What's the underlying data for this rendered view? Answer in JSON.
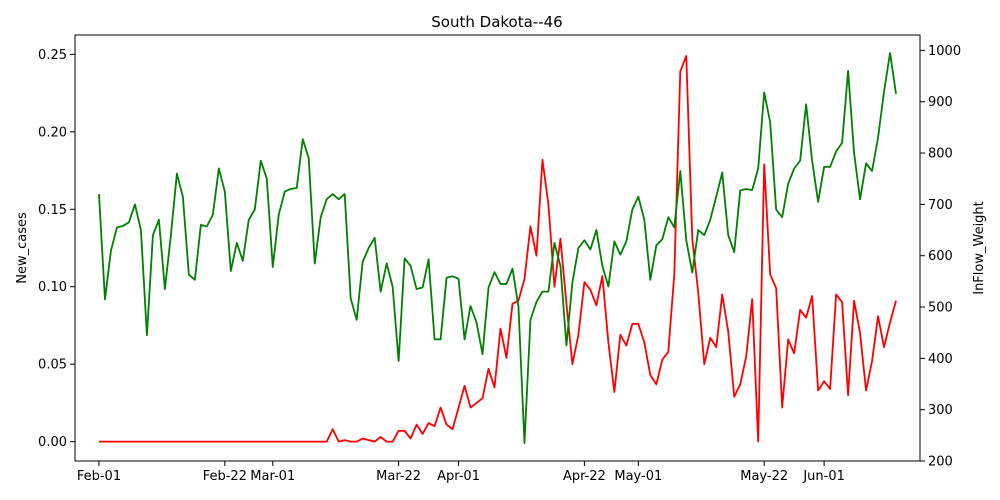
{
  "chart_data": {
    "type": "line",
    "title": "South Dakota--46",
    "ylabel_left": "New_cases",
    "ylabel_right": "InFlow_Weight",
    "x_ticks": [
      "Feb-01",
      "Feb-22",
      "Mar-01",
      "Mar-22",
      "Apr-01",
      "Apr-22",
      "May-01",
      "May-22",
      "Jun-01"
    ],
    "x_tick_days": [
      0,
      21,
      29,
      50,
      60,
      81,
      90,
      111,
      121
    ],
    "y_left_ticks": [
      "0.00",
      "0.05",
      "0.10",
      "0.15",
      "0.20",
      "0.25"
    ],
    "y_left_range": [
      -0.0125,
      0.2625
    ],
    "y_right_ticks": [
      "200",
      "300",
      "400",
      "500",
      "600",
      "700",
      "800",
      "900",
      "1000"
    ],
    "y_right_range": [
      200,
      1030
    ],
    "grid": false,
    "series": [
      {
        "axis": "left",
        "color": "#ff0000",
        "values": [
          0,
          0,
          0,
          0,
          0,
          0,
          0,
          0,
          0,
          0,
          0,
          0,
          0,
          0,
          0,
          0,
          0,
          0,
          0,
          0,
          0,
          0,
          0,
          0,
          0,
          0,
          0,
          0,
          0,
          0,
          0,
          0,
          0,
          0,
          0,
          0,
          0,
          0,
          0,
          0.008,
          0.0,
          0.001,
          0.0,
          0.0,
          0.002,
          0.001,
          0.0,
          0.003,
          0.0,
          0.0,
          0.007,
          0.007,
          0.002,
          0.011,
          0.005,
          0.012,
          0.01,
          0.022,
          0.011,
          0.008,
          0.022,
          0.036,
          0.022,
          0.025,
          0.028,
          0.047,
          0.035,
          0.073,
          0.054,
          0.089,
          0.091,
          0.105,
          0.139,
          0.12,
          0.182,
          0.153,
          0.1,
          0.131,
          0.089,
          0.05,
          0.069,
          0.103,
          0.098,
          0.088,
          0.107,
          0.064,
          0.032,
          0.069,
          0.062,
          0.076,
          0.076,
          0.064,
          0.043,
          0.037,
          0.053,
          0.058,
          0.108,
          0.239,
          0.249,
          0.131,
          0.096,
          0.05,
          0.067,
          0.061,
          0.095,
          0.071,
          0.029,
          0.037,
          0.055,
          0.092,
          0.0,
          0.179,
          0.108,
          0.099,
          0.022,
          0.066,
          0.057,
          0.085,
          0.08,
          0.094,
          0.033,
          0.039,
          0.034,
          0.095,
          0.09,
          0.03,
          0.091,
          0.07,
          0.033,
          0.052,
          0.081,
          0.061,
          0.077,
          0.091
        ]
      },
      {
        "axis": "right",
        "color": "#008000",
        "values": [
          720,
          515,
          610,
          655,
          658,
          665,
          700,
          650,
          445,
          640,
          670,
          535,
          640,
          760,
          715,
          563,
          553,
          660,
          657,
          680,
          770,
          725,
          570,
          625,
          590,
          670,
          690,
          785,
          750,
          578,
          680,
          725,
          730,
          732,
          827,
          790,
          585,
          675,
          710,
          720,
          710,
          720,
          517,
          475,
          588,
          615,
          635,
          530,
          585,
          540,
          395,
          595,
          580,
          535,
          538,
          593,
          437,
          437,
          557,
          560,
          555,
          437,
          502,
          470,
          408,
          538,
          568,
          545,
          545,
          575,
          500,
          235,
          475,
          510,
          530,
          530,
          625,
          580,
          425,
          548,
          615,
          630,
          612,
          650,
          580,
          540,
          628,
          602,
          628,
          690,
          715,
          670,
          553,
          620,
          632,
          675,
          655,
          765,
          630,
          567,
          650,
          640,
          670,
          715,
          762,
          640,
          607,
          727,
          730,
          728,
          770,
          918,
          860,
          690,
          675,
          740,
          770,
          785,
          895,
          785,
          705,
          773,
          773,
          803,
          820,
          960,
          800,
          710,
          780,
          765,
          830,
          920,
          995,
          915
        ]
      }
    ]
  }
}
